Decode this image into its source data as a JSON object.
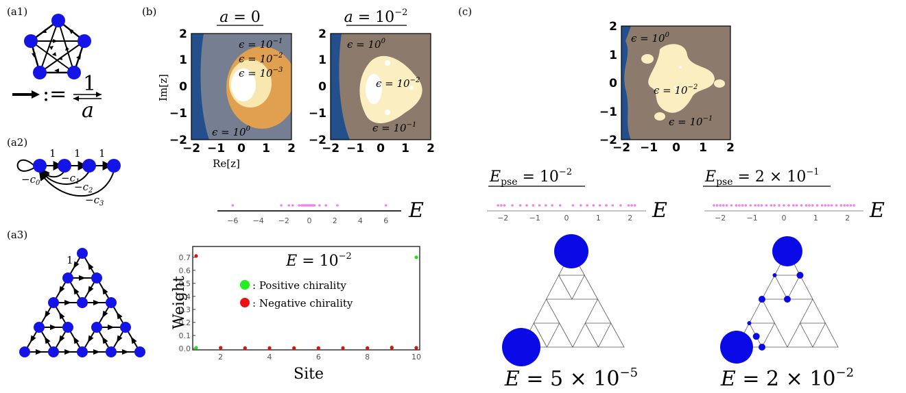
{
  "panels": {
    "a1": {
      "label": "(a1)",
      "legend_num": "1",
      "legend_den": "a",
      "legend_op": ":="
    },
    "a2": {
      "label": "(a2)",
      "edge_labels": [
        "1",
        "1",
        "1"
      ],
      "coeffs": [
        "−c",
        "−c",
        "−c",
        "−c"
      ],
      "coeff_subs": [
        "0",
        "1",
        "2",
        "3"
      ]
    },
    "a3": {
      "label": "(a3)",
      "edge_label": "1"
    },
    "b": {
      "label": "(b)"
    },
    "c": {
      "label": "(c)"
    }
  },
  "contour_plots": [
    {
      "title_var": "a",
      "title_eq": " = 0",
      "title_exp": "",
      "xlabel": "Re[z]",
      "ylabel": "Im[z]",
      "xticks": [
        "−2",
        "−1",
        "0",
        "1",
        "2"
      ],
      "yticks": [
        "2",
        "1",
        "0",
        "−1",
        "−2"
      ],
      "levels": [
        {
          "text": "ϵ = 10",
          "exp": "−1"
        },
        {
          "text": "ϵ = 10",
          "exp": "−2"
        },
        {
          "text": "ϵ = 10",
          "exp": "−3"
        },
        {
          "text": "ϵ = 10",
          "exp": "0"
        }
      ]
    },
    {
      "title_var": "a",
      "title_eq": " = 10",
      "title_exp": "−2",
      "xticks": [
        "−2",
        "−1",
        "0",
        "1",
        "2"
      ],
      "yticks": [
        "2",
        "1",
        "0",
        "−1",
        "−2"
      ],
      "levels": [
        {
          "text": "ϵ = 10",
          "exp": "0"
        },
        {
          "text": "ϵ = 10",
          "exp": "−2"
        },
        {
          "text": "ϵ = 10",
          "exp": "−1"
        }
      ]
    },
    {
      "xticks": [
        "−2",
        "−1",
        "0",
        "1",
        "2"
      ],
      "yticks": [
        "2",
        "1",
        "0",
        "−1",
        "−2"
      ],
      "levels": [
        {
          "text": "ϵ = 10",
          "exp": "0"
        },
        {
          "text": "ϵ = 10",
          "exp": "−2"
        },
        {
          "text": "ϵ = 10",
          "exp": "−1"
        }
      ]
    }
  ],
  "spectra": [
    {
      "axis_label": "E",
      "ticks": [
        "−6",
        "−4",
        "−2",
        "0",
        "2",
        "4",
        "6"
      ],
      "points": [
        -6,
        -2.2,
        -1.6,
        -1.3,
        -0.8,
        -0.6,
        -0.5,
        -0.4,
        -0.3,
        -0.2,
        -0.1,
        0,
        0.1,
        0.2,
        0.3,
        0.4,
        0.8,
        1.3,
        2.2,
        6
      ]
    },
    {
      "axis_label": "E",
      "ticks": [
        "−2",
        "−1",
        "0",
        "1",
        "2"
      ],
      "title_sym": "E",
      "title_sub": "pse",
      "title_eq": " = 10",
      "title_exp": "−2",
      "title_mult": "",
      "points": [
        -2.15,
        -2.05,
        -1.95,
        -1.7,
        -1.45,
        -1.25,
        -1.05,
        -0.85,
        -0.65,
        -0.45,
        -0.2,
        0.2,
        0.45,
        0.65,
        0.85,
        1.05,
        1.25,
        1.45,
        1.7,
        1.95,
        2.05,
        2.15
      ]
    },
    {
      "axis_label": "E",
      "ticks": [
        "−2",
        "−1",
        "0",
        "1",
        "2"
      ],
      "title_sym": "E",
      "title_sub": "pse",
      "title_eq": " = 2 × 10",
      "title_exp": "−1",
      "title_mult": "",
      "points": [
        -2.2,
        -2.1,
        -2.0,
        -1.9,
        -1.8,
        -1.65,
        -1.5,
        -1.4,
        -1.3,
        -1.2,
        -1.05,
        -0.9,
        -0.8,
        -0.7,
        -0.55,
        -0.4,
        -0.3,
        -0.15,
        0.0,
        0.15,
        0.3,
        0.4,
        0.55,
        0.7,
        0.8,
        0.9,
        1.05,
        1.2,
        1.3,
        1.4,
        1.5,
        1.65,
        1.8,
        1.9,
        2.0,
        2.1,
        2.2
      ]
    }
  ],
  "chart_data": {
    "type": "scatter",
    "title_sym": "E",
    "title_eq": " = 10",
    "title_exp": "−2",
    "xlabel": "Site",
    "ylabel": "Weight",
    "xlim": [
      1,
      10
    ],
    "ylim": [
      0,
      0.72
    ],
    "xticks": [
      2,
      4,
      6,
      8,
      10
    ],
    "yticks": [
      0.0,
      0.1,
      0.2,
      0.3,
      0.4,
      0.5,
      0.6,
      0.7
    ],
    "legend": [
      ": Positive chirality",
      ": Negative chirality"
    ],
    "series": [
      {
        "color": "#22dd22",
        "x": [
          1,
          2,
          3,
          4,
          5,
          6,
          7,
          8,
          9,
          10
        ],
        "y": [
          0.005,
          0.005,
          0.003,
          0.003,
          0.003,
          0.003,
          0.003,
          0.003,
          0.01,
          0.7
        ]
      },
      {
        "color": "#dd1111",
        "x": [
          1,
          2,
          3,
          4,
          5,
          6,
          7,
          8,
          9,
          10
        ],
        "y": [
          0.71,
          0.005,
          0.003,
          0.003,
          0.003,
          0.003,
          0.003,
          0.003,
          0.005,
          0.005
        ]
      }
    ]
  },
  "sierpinski": [
    {
      "caption_sym": "E",
      "caption_eq": " = 5 × 10",
      "caption_exp": "−5",
      "dots": [
        {
          "node": "top",
          "r": 25
        },
        {
          "node": "bl",
          "r": 28
        }
      ]
    },
    {
      "caption_sym": "E",
      "caption_eq": " = 2 × 10",
      "caption_exp": "−2",
      "dots": [
        {
          "node": "top",
          "r": 22
        },
        {
          "node": "bl",
          "r": 24
        },
        {
          "node": "n1",
          "r": 3
        },
        {
          "node": "n2",
          "r": 5
        },
        {
          "node": "n3",
          "r": 5
        },
        {
          "node": "n4",
          "r": 5
        },
        {
          "node": "n5",
          "r": 3
        },
        {
          "node": "n6",
          "r": 5
        },
        {
          "node": "n7",
          "r": 5
        }
      ]
    }
  ]
}
